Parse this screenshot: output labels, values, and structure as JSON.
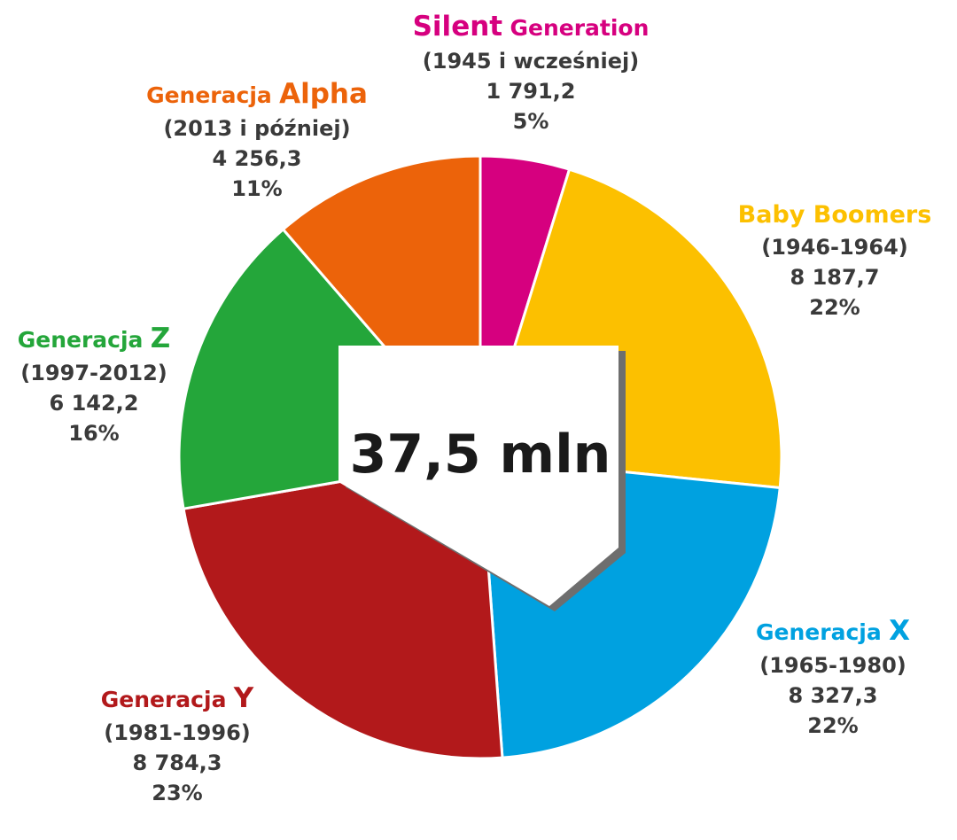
{
  "chart_data": {
    "type": "pie",
    "title": "",
    "center_label": "37,5 mln",
    "slices": [
      {
        "prefix": "Silent",
        "main": "",
        "suffix": "Generation",
        "range": "(1945 i wcześniej)",
        "value": 1791.2,
        "value_label": "1 791,2",
        "percent_label": "5%",
        "color": "#d6007f"
      },
      {
        "prefix": "",
        "main": "Baby Boomers",
        "suffix": "",
        "range": "(1946-1964)",
        "value": 8187.7,
        "value_label": "8 187,7",
        "percent_label": "22%",
        "color": "#fcc000"
      },
      {
        "prefix": "Generacja",
        "main": "X",
        "suffix": "",
        "range": "(1965-1980)",
        "value": 8327.3,
        "value_label": "8 327,3",
        "percent_label": "22%",
        "color": "#00a1e0"
      },
      {
        "prefix": "Generacja",
        "main": "Y",
        "suffix": "",
        "range": "(1981-1996)",
        "value": 8784.3,
        "value_label": "8 784,3",
        "percent_label": "23%",
        "color": "#b2191b"
      },
      {
        "prefix": "Generacja",
        "main": "Z",
        "suffix": "",
        "range": "(1997-2012)",
        "value": 6142.2,
        "value_label": "6 142,2",
        "percent_label": "16%",
        "color": "#24a63a"
      },
      {
        "prefix": "Generacja",
        "main": "Alpha",
        "suffix": "",
        "range": "(2013 i później)",
        "value": 4256.3,
        "value_label": "4 256,3",
        "percent_label": "11%",
        "color": "#ec630a"
      }
    ]
  }
}
